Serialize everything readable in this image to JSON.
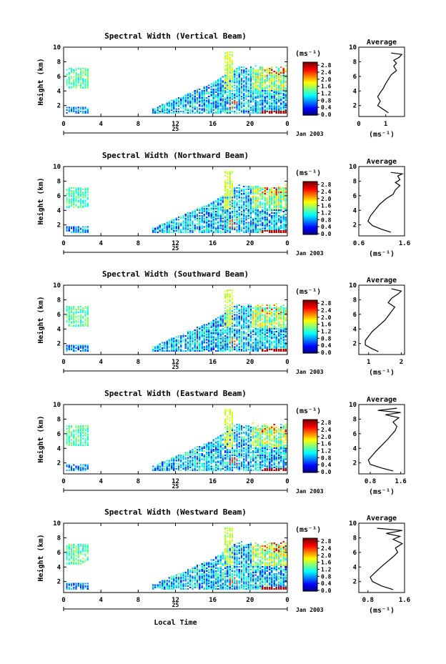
{
  "figure": {
    "date_label": "Jan 2003",
    "day_label": "25",
    "x_axis_label": "Local Time",
    "y_axis_label": "Height (km)",
    "colorbar_unit": "(ms⁻¹)",
    "avg_title": "Average",
    "avg_xlabel": "(ms⁻¹)"
  },
  "chart_data": [
    {
      "type": "heatmap",
      "title": "Spectral Width (Vertical Beam)",
      "xlabel": "",
      "ylabel": "Height (km)",
      "xlim": [
        0,
        24
      ],
      "ylim": [
        0.5,
        10
      ],
      "xticks": [
        "0",
        "4",
        "8",
        "12",
        "16",
        "20",
        "0"
      ],
      "yticks": [
        "2",
        "4",
        "6",
        "8",
        "10"
      ],
      "colorbar": {
        "unit": "(ms⁻¹)",
        "range": [
          0,
          2.8
        ],
        "ticks": [
          "0.0",
          "0.4",
          "0.8",
          "1.2",
          "1.6",
          "2.0",
          "2.4",
          "2.8"
        ]
      },
      "average_profile": {
        "title": "Average",
        "xlabel": "(ms⁻¹)",
        "xlim": [
          0,
          1.7
        ],
        "xticks": [
          "0",
          "1"
        ],
        "points": [
          [
            1.1,
            1.0
          ],
          [
            0.9,
            1.5
          ],
          [
            0.7,
            2.0
          ],
          [
            0.8,
            2.6
          ],
          [
            0.7,
            3.2
          ],
          [
            0.8,
            3.8
          ],
          [
            0.9,
            4.3
          ],
          [
            1.0,
            5.0
          ],
          [
            1.1,
            5.6
          ],
          [
            1.2,
            6.2
          ],
          [
            1.4,
            6.8
          ],
          [
            1.3,
            7.4
          ],
          [
            1.4,
            7.8
          ],
          [
            1.3,
            8.2
          ],
          [
            1.5,
            8.6
          ],
          [
            1.6,
            9.0
          ],
          [
            1.2,
            9.2
          ]
        ]
      }
    },
    {
      "type": "heatmap",
      "title": "Spectral Width (Northward Beam)",
      "xlabel": "",
      "ylabel": "Height (km)",
      "xlim": [
        0,
        24
      ],
      "ylim": [
        0.5,
        10
      ],
      "xticks": [
        "0",
        "4",
        "8",
        "12",
        "16",
        "20",
        "0"
      ],
      "yticks": [
        "2",
        "4",
        "6",
        "8",
        "10"
      ],
      "colorbar": {
        "unit": "(ms⁻¹)",
        "range": [
          0,
          2.8
        ],
        "ticks": [
          "0.0",
          "0.4",
          "0.8",
          "1.2",
          "1.6",
          "2.0",
          "2.4",
          "2.8"
        ]
      },
      "average_profile": {
        "title": "Average",
        "xlabel": "(ms⁻¹)",
        "xlim": [
          0.6,
          1.6
        ],
        "xticks": [
          "0.6",
          "1.6"
        ],
        "points": [
          [
            1.3,
            1.0
          ],
          [
            1.1,
            1.4
          ],
          [
            0.9,
            1.9
          ],
          [
            0.8,
            2.5
          ],
          [
            0.85,
            3.2
          ],
          [
            0.95,
            4.0
          ],
          [
            1.05,
            4.8
          ],
          [
            1.2,
            5.6
          ],
          [
            1.35,
            6.2
          ],
          [
            1.4,
            6.8
          ],
          [
            1.5,
            7.4
          ],
          [
            1.4,
            7.8
          ],
          [
            1.5,
            8.2
          ],
          [
            1.45,
            8.7
          ],
          [
            1.55,
            9.0
          ],
          [
            1.3,
            9.2
          ]
        ]
      }
    },
    {
      "type": "heatmap",
      "title": "Spectral Width (Southward Beam)",
      "xlabel": "",
      "ylabel": "Height (km)",
      "xlim": [
        0,
        24
      ],
      "ylim": [
        0.5,
        10
      ],
      "xticks": [
        "0",
        "4",
        "8",
        "12",
        "16",
        "20",
        "0"
      ],
      "yticks": [
        "2",
        "4",
        "6",
        "8",
        "10"
      ],
      "colorbar": {
        "unit": "(ms⁻¹)",
        "range": [
          0,
          2.8
        ],
        "ticks": [
          "0.0",
          "0.4",
          "0.8",
          "1.2",
          "1.6",
          "2.0",
          "2.4",
          "2.8"
        ]
      },
      "average_profile": {
        "title": "Average",
        "xlabel": "(ms⁻¹)",
        "xlim": [
          0.7,
          2.1
        ],
        "xticks": [
          "1",
          "2"
        ],
        "points": [
          [
            1.3,
            0.9
          ],
          [
            1.1,
            1.3
          ],
          [
            0.9,
            1.8
          ],
          [
            0.9,
            2.4
          ],
          [
            1.0,
            3.0
          ],
          [
            1.1,
            3.6
          ],
          [
            1.3,
            4.4
          ],
          [
            1.5,
            5.2
          ],
          [
            1.6,
            5.8
          ],
          [
            1.7,
            6.4
          ],
          [
            1.8,
            7.0
          ],
          [
            1.6,
            7.6
          ],
          [
            1.7,
            8.2
          ],
          [
            1.9,
            8.8
          ],
          [
            2.0,
            9.2
          ],
          [
            1.7,
            9.5
          ]
        ]
      }
    },
    {
      "type": "heatmap",
      "title": "Spectral Width (Eastward Beam)",
      "xlabel": "",
      "ylabel": "Height (km)",
      "xlim": [
        0,
        24
      ],
      "ylim": [
        0.5,
        10
      ],
      "xticks": [
        "0",
        "4",
        "8",
        "12",
        "16",
        "20",
        "0"
      ],
      "yticks": [
        "2",
        "4",
        "6",
        "8",
        "10"
      ],
      "colorbar": {
        "unit": "(ms⁻¹)",
        "range": [
          0,
          2.8
        ],
        "ticks": [
          "0.0",
          "0.4",
          "0.8",
          "1.2",
          "1.6",
          "2.0",
          "2.4",
          "2.8"
        ]
      },
      "average_profile": {
        "title": "Average",
        "xlabel": "(ms⁻¹)",
        "xlim": [
          0.5,
          1.7
        ],
        "xticks": [
          "0.8",
          "1.6"
        ],
        "points": [
          [
            1.4,
            0.9
          ],
          [
            1.1,
            1.3
          ],
          [
            0.8,
            1.8
          ],
          [
            0.75,
            2.4
          ],
          [
            0.85,
            3.0
          ],
          [
            0.95,
            3.6
          ],
          [
            1.1,
            4.4
          ],
          [
            1.25,
            5.2
          ],
          [
            1.35,
            5.8
          ],
          [
            1.45,
            6.4
          ],
          [
            1.5,
            7.0
          ],
          [
            1.4,
            7.6
          ],
          [
            1.55,
            8.2
          ],
          [
            1.2,
            8.6
          ],
          [
            1.6,
            8.9
          ],
          [
            1.0,
            9.2
          ],
          [
            1.5,
            9.5
          ]
        ]
      }
    },
    {
      "type": "heatmap",
      "title": "Spectral Width (Westward Beam)",
      "xlabel": "Local Time",
      "ylabel": "Height (km)",
      "xlim": [
        0,
        24
      ],
      "ylim": [
        0.5,
        10
      ],
      "xticks": [
        "0",
        "4",
        "8",
        "12",
        "16",
        "20",
        "0"
      ],
      "yticks": [
        "2",
        "4",
        "6",
        "8",
        "10"
      ],
      "colorbar": {
        "unit": "(ms⁻¹)",
        "range": [
          0,
          2.8
        ],
        "ticks": [
          "0.0",
          "0.4",
          "0.8",
          "1.2",
          "1.6",
          "2.0",
          "2.4",
          "2.8"
        ]
      },
      "average_profile": {
        "title": "Average",
        "xlabel": "(ms⁻¹)",
        "xlim": [
          0.6,
          1.6
        ],
        "xticks": [
          "0.8",
          "1.6"
        ],
        "points": [
          [
            1.35,
            0.9
          ],
          [
            1.1,
            1.4
          ],
          [
            0.9,
            2.0
          ],
          [
            0.85,
            2.6
          ],
          [
            0.95,
            3.2
          ],
          [
            1.05,
            3.8
          ],
          [
            1.2,
            4.6
          ],
          [
            1.35,
            5.4
          ],
          [
            1.45,
            6.0
          ],
          [
            1.4,
            6.6
          ],
          [
            1.55,
            7.2
          ],
          [
            1.35,
            7.8
          ],
          [
            1.5,
            8.2
          ],
          [
            1.2,
            8.6
          ],
          [
            1.55,
            9.0
          ],
          [
            1.0,
            9.3
          ]
        ]
      }
    }
  ]
}
